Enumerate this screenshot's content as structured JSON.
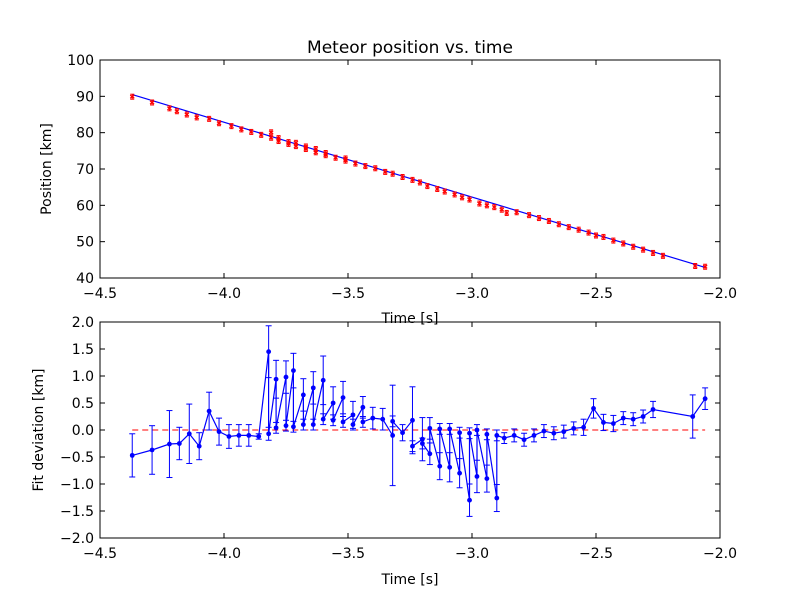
{
  "chart_data": [
    {
      "type": "scatter",
      "title": "Meteor position vs. time",
      "xlabel": "Time [s]",
      "ylabel": "Position [km]",
      "xlim": [
        -4.5,
        -2.0
      ],
      "ylim": [
        40,
        100
      ],
      "xticks": [
        -4.5,
        -4.0,
        -3.5,
        -3.0,
        -2.5,
        -2.0
      ],
      "xtick_labels": [
        "−4.5",
        "−4.0",
        "−3.5",
        "−3.0",
        "−2.5",
        "−2.0"
      ],
      "yticks": [
        40,
        50,
        60,
        70,
        80,
        90,
        100
      ],
      "ytick_labels": [
        "40",
        "50",
        "60",
        "70",
        "80",
        "90",
        "100"
      ],
      "grid": false,
      "fit_line": {
        "x": [
          -4.37,
          -2.06
        ],
        "y": [
          90.5,
          42.9
        ],
        "color": "#0000ff"
      },
      "series": [
        {
          "marker": "x",
          "color": "#ff0000",
          "points": [
            [
              -4.37,
              89.9
            ],
            [
              -4.29,
              88.3
            ],
            [
              -4.22,
              86.7
            ],
            [
              -4.19,
              85.9
            ],
            [
              -4.15,
              85.0
            ],
            [
              -4.11,
              84.2
            ],
            [
              -4.06,
              83.8
            ],
            [
              -4.02,
              82.6
            ],
            [
              -3.97,
              81.8
            ],
            [
              -3.93,
              80.9
            ],
            [
              -3.89,
              80.2
            ],
            [
              -3.85,
              79.4
            ],
            [
              -3.81,
              80.1
            ],
            [
              -3.81,
              78.6
            ],
            [
              -3.78,
              78.5
            ],
            [
              -3.78,
              77.7
            ],
            [
              -3.74,
              77.4
            ],
            [
              -3.74,
              76.9
            ],
            [
              -3.71,
              77.2
            ],
            [
              -3.71,
              76.3
            ],
            [
              -3.67,
              76.2
            ],
            [
              -3.67,
              75.5
            ],
            [
              -3.63,
              75.5
            ],
            [
              -3.63,
              74.6
            ],
            [
              -3.59,
              74.4
            ],
            [
              -3.59,
              73.8
            ],
            [
              -3.55,
              73.1
            ],
            [
              -3.51,
              72.9
            ],
            [
              -3.51,
              72.3
            ],
            [
              -3.47,
              71.5
            ],
            [
              -3.43,
              70.8
            ],
            [
              -3.39,
              70.2
            ],
            [
              -3.35,
              69.2
            ],
            [
              -3.32,
              68.7
            ],
            [
              -3.28,
              67.8
            ],
            [
              -3.24,
              67.0
            ],
            [
              -3.21,
              66.3
            ],
            [
              -3.18,
              65.3
            ],
            [
              -3.14,
              64.5
            ],
            [
              -3.11,
              63.8
            ],
            [
              -3.07,
              63.0
            ],
            [
              -3.04,
              62.2
            ],
            [
              -3.01,
              61.6
            ],
            [
              -2.97,
              60.5
            ],
            [
              -2.94,
              60.0
            ],
            [
              -2.91,
              59.5
            ],
            [
              -2.88,
              58.8
            ],
            [
              -2.86,
              57.9
            ],
            [
              -2.82,
              58.1
            ],
            [
              -2.77,
              57.3
            ],
            [
              -2.73,
              56.5
            ],
            [
              -2.69,
              55.7
            ],
            [
              -2.65,
              54.8
            ],
            [
              -2.61,
              54.0
            ],
            [
              -2.57,
              53.3
            ],
            [
              -2.53,
              52.5
            ],
            [
              -2.5,
              51.7
            ],
            [
              -2.47,
              51.3
            ],
            [
              -2.43,
              50.3
            ],
            [
              -2.39,
              49.5
            ],
            [
              -2.35,
              48.6
            ],
            [
              -2.31,
              47.8
            ],
            [
              -2.27,
              46.9
            ],
            [
              -2.23,
              46.1
            ],
            [
              -2.1,
              43.3
            ],
            [
              -2.06,
              43.1
            ]
          ]
        }
      ]
    },
    {
      "type": "line",
      "title": "",
      "xlabel": "Time [s]",
      "ylabel": "Fit deviation [km]",
      "xlim": [
        -4.5,
        -2.0
      ],
      "ylim": [
        -2.0,
        2.0
      ],
      "xticks": [
        -4.5,
        -4.0,
        -3.5,
        -3.0,
        -2.5,
        -2.0
      ],
      "xtick_labels": [
        "−4.5",
        "−4.0",
        "−3.5",
        "−3.0",
        "−2.5",
        "−2.0"
      ],
      "yticks": [
        -2.0,
        -1.5,
        -1.0,
        -0.5,
        0.0,
        0.5,
        1.0,
        1.5,
        2.0
      ],
      "ytick_labels": [
        "−2.0",
        "−1.5",
        "−1.0",
        "−0.5",
        "0.0",
        "0.5",
        "1.0",
        "1.5",
        "2.0"
      ],
      "grid": false,
      "reference_line": {
        "y": 0.0,
        "color": "#ff0000",
        "style": "dashed"
      },
      "series": [
        {
          "color": "#0000ff",
          "marker": "dot",
          "error_bars": true,
          "points": [
            [
              -4.37,
              -0.47,
              0.4
            ],
            [
              -4.29,
              -0.37,
              0.45
            ],
            [
              -4.22,
              -0.26,
              0.62
            ],
            [
              -4.18,
              -0.25,
              0.3
            ],
            [
              -4.14,
              -0.07,
              0.55
            ],
            [
              -4.1,
              -0.3,
              0.25
            ],
            [
              -4.06,
              0.35,
              0.35
            ],
            [
              -4.02,
              -0.03,
              0.25
            ],
            [
              -3.98,
              -0.12,
              0.22
            ],
            [
              -3.94,
              -0.1,
              0.2
            ],
            [
              -3.9,
              -0.1,
              0.2
            ],
            [
              -3.86,
              -0.12,
              0.05
            ],
            [
              -3.82,
              1.45,
              0.48
            ],
            [
              -3.82,
              -0.07,
              0.12
            ],
            [
              -3.79,
              0.94,
              0.35
            ],
            [
              -3.79,
              0.04,
              0.1
            ],
            [
              -3.75,
              0.98,
              0.3
            ],
            [
              -3.75,
              0.08,
              0.1
            ],
            [
              -3.72,
              1.1,
              0.32
            ],
            [
              -3.72,
              0.06,
              0.1
            ],
            [
              -3.68,
              0.65,
              0.3
            ],
            [
              -3.68,
              0.1,
              0.1
            ],
            [
              -3.64,
              0.78,
              0.3
            ],
            [
              -3.64,
              0.1,
              0.1
            ],
            [
              -3.6,
              0.92,
              0.45
            ],
            [
              -3.6,
              0.2,
              0.1
            ],
            [
              -3.56,
              0.5,
              0.3
            ],
            [
              -3.56,
              0.18,
              0.1
            ],
            [
              -3.52,
              0.6,
              0.3
            ],
            [
              -3.52,
              0.15,
              0.1
            ],
            [
              -3.48,
              0.28,
              0.25
            ],
            [
              -3.48,
              0.1,
              0.1
            ],
            [
              -3.44,
              0.42,
              0.2
            ],
            [
              -3.44,
              0.15,
              0.1
            ],
            [
              -3.4,
              0.22,
              0.2
            ],
            [
              -3.36,
              0.2,
              0.2
            ],
            [
              -3.32,
              -0.1,
              0.93
            ],
            [
              -3.32,
              0.16,
              0.1
            ],
            [
              -3.28,
              -0.05,
              0.15
            ],
            [
              -3.24,
              0.18,
              0.62
            ],
            [
              -3.24,
              -0.3,
              0.1
            ],
            [
              -3.2,
              -0.17,
              0.4
            ],
            [
              -3.2,
              -0.25,
              0.1
            ],
            [
              -3.17,
              -0.44,
              0.2
            ],
            [
              -3.17,
              0.03,
              0.2
            ],
            [
              -3.13,
              -0.67,
              0.25
            ],
            [
              -3.13,
              0.02,
              0.1
            ],
            [
              -3.09,
              -0.69,
              0.27
            ],
            [
              -3.09,
              0.02,
              0.1
            ],
            [
              -3.05,
              -0.8,
              0.27
            ],
            [
              -3.05,
              -0.05,
              0.1
            ],
            [
              -3.01,
              -1.3,
              0.3
            ],
            [
              -3.01,
              -0.06,
              0.1
            ],
            [
              -2.98,
              -0.86,
              0.3
            ],
            [
              -2.98,
              0.0,
              0.1
            ],
            [
              -2.94,
              -0.9,
              0.25
            ],
            [
              -2.94,
              -0.08,
              0.1
            ],
            [
              -2.9,
              -1.26,
              0.25
            ],
            [
              -2.9,
              -0.1,
              0.1
            ],
            [
              -2.87,
              -0.15,
              0.1
            ],
            [
              -2.83,
              -0.1,
              0.12
            ],
            [
              -2.79,
              -0.18,
              0.12
            ],
            [
              -2.75,
              -0.1,
              0.12
            ],
            [
              -2.71,
              -0.02,
              0.12
            ],
            [
              -2.67,
              -0.06,
              0.12
            ],
            [
              -2.63,
              -0.03,
              0.12
            ],
            [
              -2.59,
              0.03,
              0.12
            ],
            [
              -2.55,
              0.05,
              0.15
            ],
            [
              -2.51,
              0.4,
              0.18
            ],
            [
              -2.47,
              0.14,
              0.15
            ],
            [
              -2.43,
              0.12,
              0.15
            ],
            [
              -2.39,
              0.22,
              0.12
            ],
            [
              -2.35,
              0.2,
              0.12
            ],
            [
              -2.31,
              0.25,
              0.12
            ],
            [
              -2.27,
              0.38,
              0.15
            ],
            [
              -2.11,
              0.25,
              0.4
            ],
            [
              -2.06,
              0.58,
              0.2
            ]
          ]
        }
      ]
    }
  ]
}
